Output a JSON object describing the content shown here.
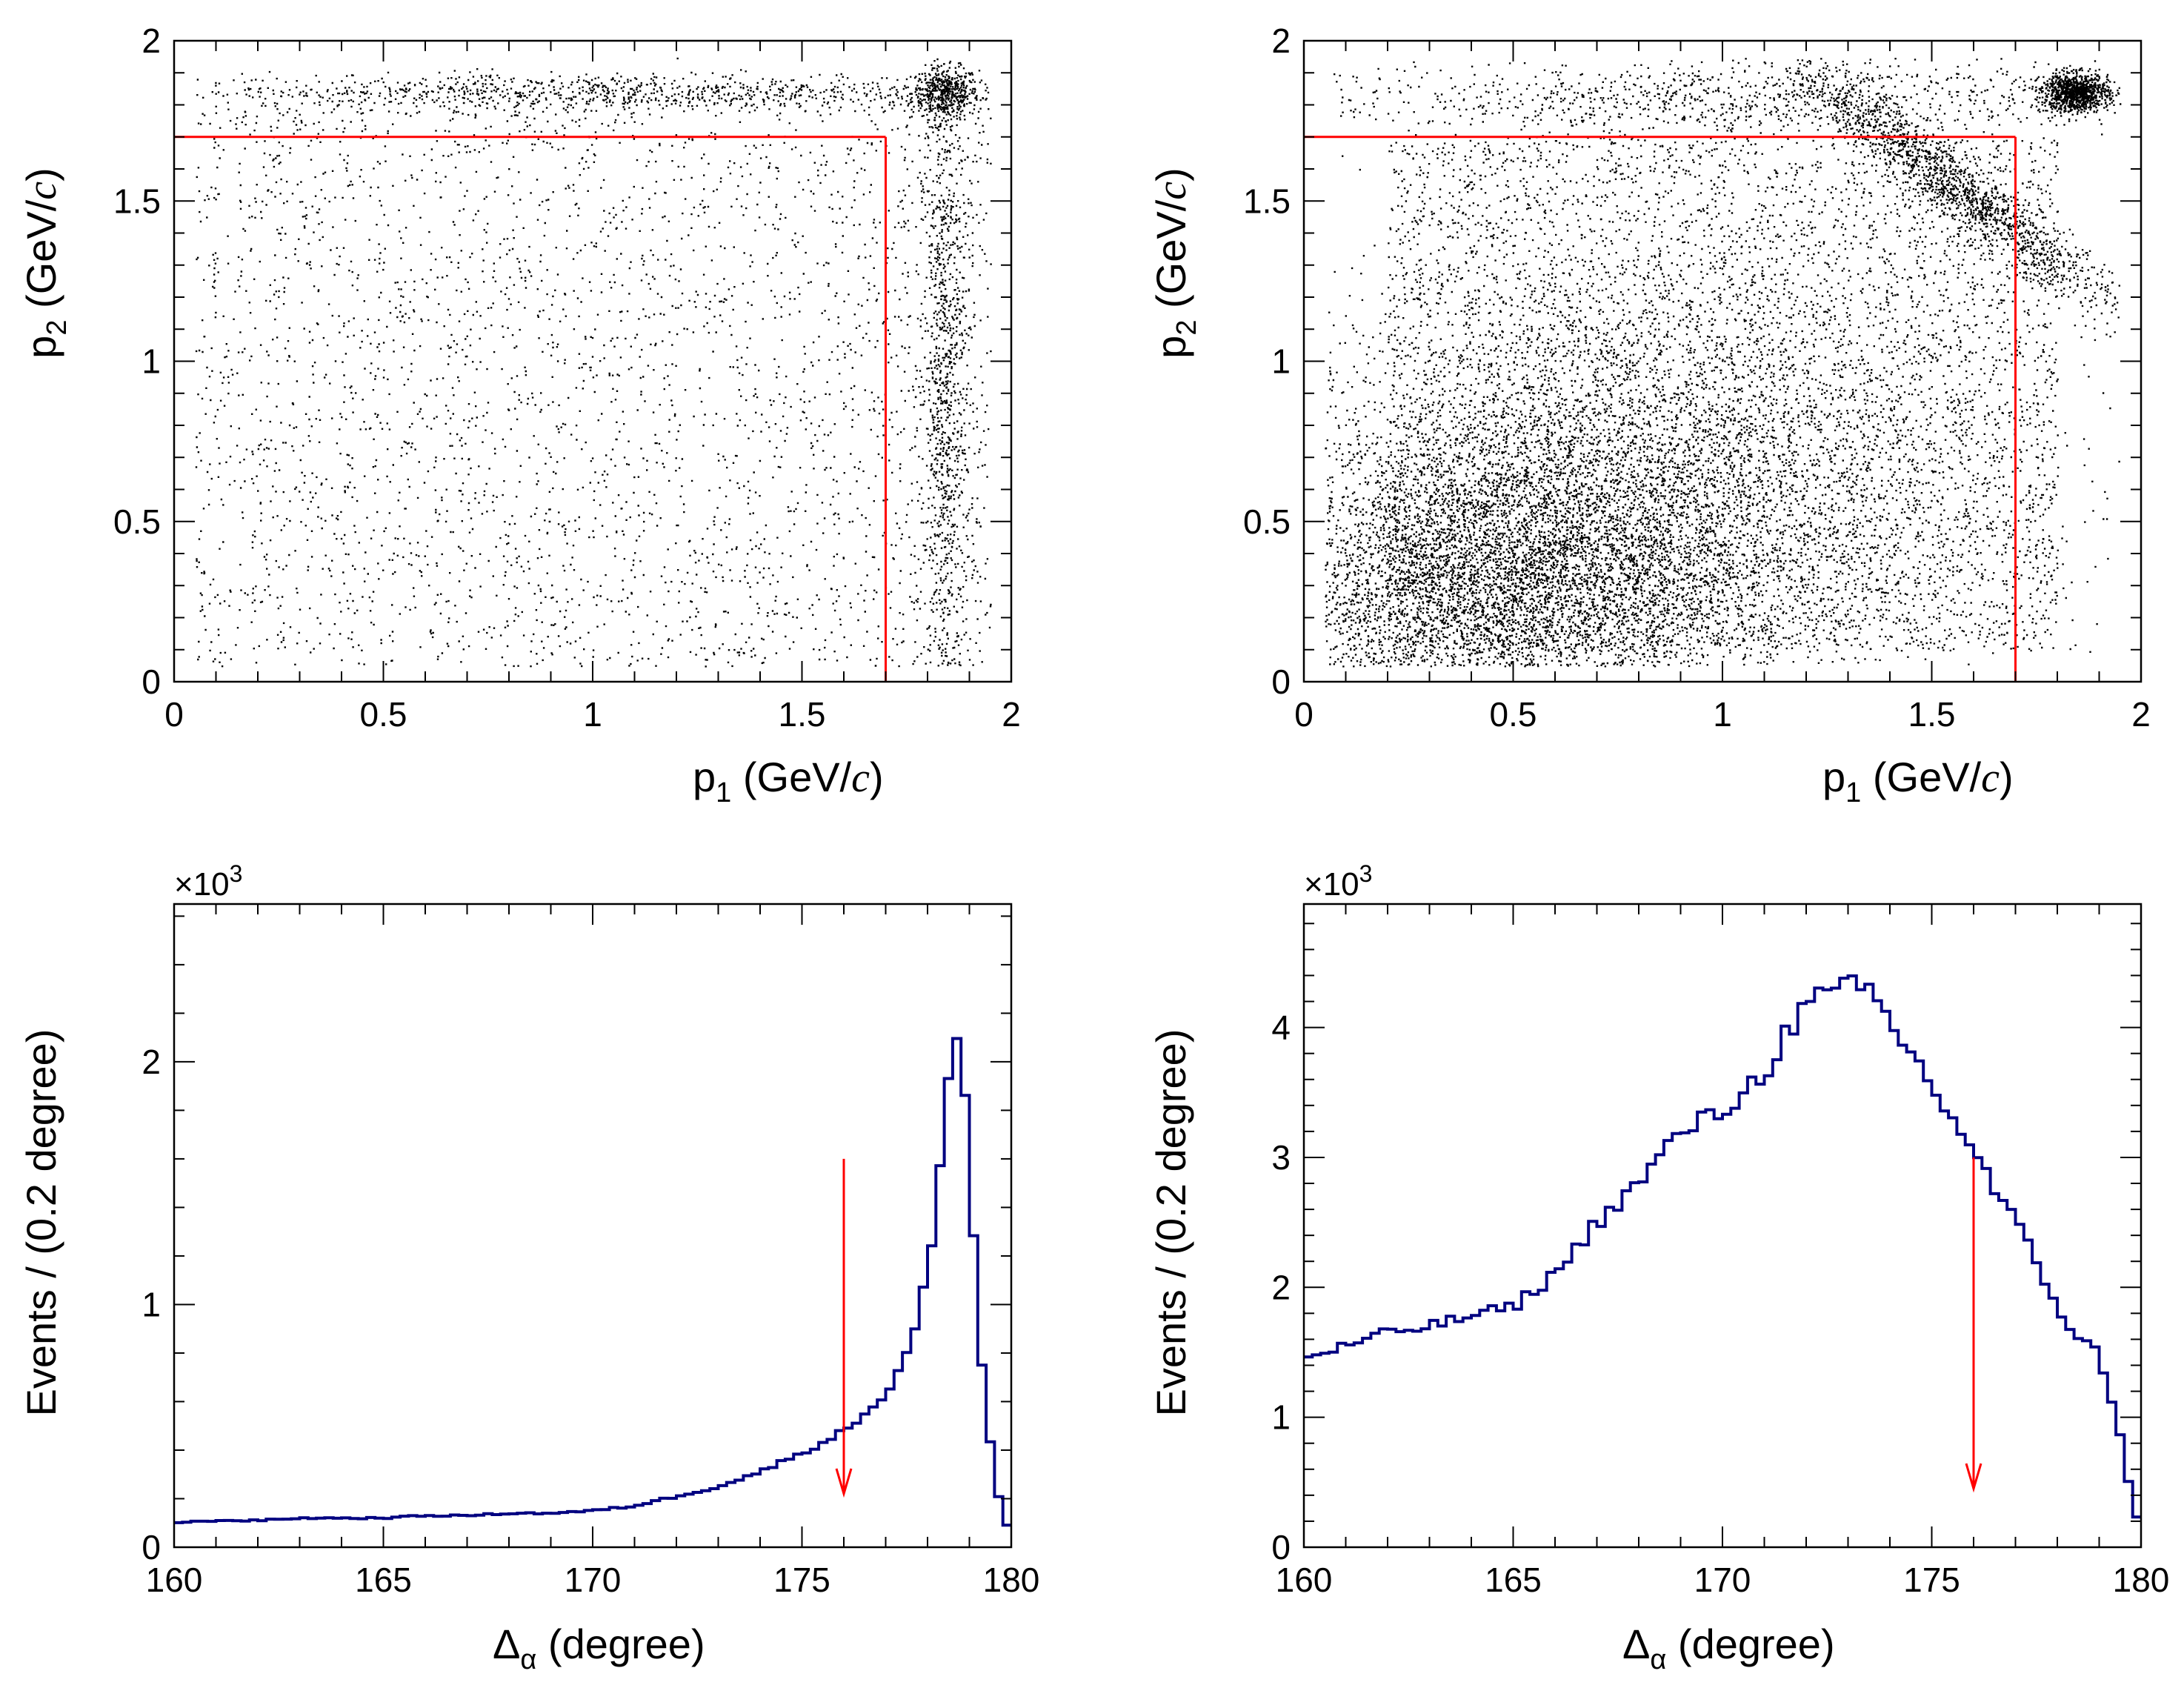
{
  "chart_data": [
    {
      "type": "scatter",
      "panel": "top-left",
      "xlabel": "p",
      "xlabel_sub": "1",
      "ylabel": "p",
      "ylabel_sub": "2",
      "unit_prefix": "(GeV/",
      "unit_var": "c",
      "unit_suffix": ")",
      "xlim": [
        0,
        2
      ],
      "ylim": [
        0,
        2
      ],
      "xticks": [
        "0",
        "0.5",
        "1",
        "1.5",
        "2"
      ],
      "yticks": [
        "0",
        "0.5",
        "1",
        "1.5",
        "2"
      ],
      "density": "sparse",
      "clusters": [
        {
          "x": 1.84,
          "y": 1.84,
          "sx": 0.04,
          "sy": 0.04,
          "weight": 0.08
        },
        {
          "x": 1.84,
          "y": 0.9,
          "sx": 0.03,
          "sy": 0.55,
          "weight": 0.18
        },
        {
          "x": 1.0,
          "y": 1.84,
          "sx": 0.55,
          "sy": 0.03,
          "weight": 0.18
        },
        {
          "x": 1.0,
          "y": 0.9,
          "sx": 1.0,
          "sy": 0.9,
          "weight": 0.56,
          "uniform": true
        }
      ],
      "cut_lines": [
        {
          "x": [
            0,
            1.7
          ],
          "y": [
            1.7,
            1.7
          ]
        },
        {
          "x": [
            1.7,
            1.7
          ],
          "y": [
            0,
            1.7
          ]
        }
      ],
      "cut_color": "#ff0000",
      "point_color": "#000000"
    },
    {
      "type": "scatter",
      "panel": "top-right",
      "xlabel": "p",
      "xlabel_sub": "1",
      "ylabel": "p",
      "ylabel_sub": "2",
      "unit_prefix": "(GeV/",
      "unit_var": "c",
      "unit_suffix": ")",
      "xlim": [
        0,
        2
      ],
      "ylim": [
        0,
        2
      ],
      "xticks": [
        "0",
        "0.5",
        "1",
        "1.5",
        "2"
      ],
      "yticks": [
        "0",
        "0.5",
        "1",
        "1.5",
        "2"
      ],
      "density": "dense",
      "clusters": [
        {
          "x": 0.45,
          "y": 0.3,
          "sx": 0.3,
          "sy": 0.22,
          "weight": 0.36
        },
        {
          "x": 0.8,
          "y": 0.6,
          "sx": 0.45,
          "sy": 0.35,
          "weight": 0.3
        },
        {
          "x": 1.0,
          "y": 0.9,
          "sx": 0.8,
          "sy": 0.8,
          "weight": 0.2,
          "uniform": true
        },
        {
          "x": 1.55,
          "y": 1.55,
          "sx": 0.2,
          "sy": 0.03,
          "weight": 0.06,
          "diagonal": true
        },
        {
          "x": 1.84,
          "y": 1.84,
          "sx": 0.04,
          "sy": 0.03,
          "weight": 0.04
        },
        {
          "x": 1.0,
          "y": 1.82,
          "sx": 0.5,
          "sy": 0.06,
          "weight": 0.04
        }
      ],
      "cut_lines": [
        {
          "x": [
            0,
            1.7
          ],
          "y": [
            1.7,
            1.7
          ]
        },
        {
          "x": [
            1.7,
            1.7
          ],
          "y": [
            0,
            1.7
          ]
        }
      ],
      "cut_color": "#ff0000",
      "point_color": "#000000"
    },
    {
      "type": "line",
      "style": "step-histogram",
      "panel": "bottom-left",
      "xlabel": "Δ",
      "xlabel_sub": "α",
      "xlabel_rest": "(degree)",
      "ylabel": "Events / (0.2 degree)",
      "y_multiplier": "×10",
      "y_multiplier_exp": "3",
      "xlim": [
        160,
        180
      ],
      "ylim": [
        0,
        2.65
      ],
      "xticks": [
        "160",
        "165",
        "170",
        "175",
        "180"
      ],
      "yticks": [
        "0",
        "1",
        "2"
      ],
      "bin_width": 0.2,
      "x": [
        160,
        161,
        162,
        163,
        164,
        165,
        166,
        167,
        168,
        169,
        170,
        170.5,
        171,
        171.5,
        172,
        172.5,
        173,
        173.5,
        174,
        174.5,
        175,
        175.5,
        176,
        176.5,
        177,
        177.4,
        177.8,
        178.1,
        178.4,
        178.6,
        178.8,
        179,
        179.2,
        179.4,
        179.6,
        179.8,
        180
      ],
      "values": [
        0.1,
        0.11,
        0.11,
        0.12,
        0.12,
        0.12,
        0.13,
        0.13,
        0.14,
        0.14,
        0.15,
        0.16,
        0.17,
        0.19,
        0.21,
        0.23,
        0.25,
        0.28,
        0.31,
        0.35,
        0.39,
        0.43,
        0.48,
        0.55,
        0.63,
        0.75,
        0.95,
        1.25,
        1.7,
        2.1,
        2.18,
        1.6,
        0.95,
        0.55,
        0.32,
        0.1,
        0.08
      ],
      "line_color": "#000080",
      "arrow": {
        "x": 176,
        "y_from": 1.6,
        "y_to": 0.22,
        "color": "#ff0000"
      }
    },
    {
      "type": "line",
      "style": "step-histogram",
      "panel": "bottom-right",
      "xlabel": "Δ",
      "xlabel_sub": "α",
      "xlabel_rest": "(degree)",
      "ylabel": "Events / (0.2 degree)",
      "y_multiplier": "×10",
      "y_multiplier_exp": "3",
      "xlim": [
        160,
        180
      ],
      "ylim": [
        0,
        4.95
      ],
      "xticks": [
        "160",
        "165",
        "170",
        "175",
        "180"
      ],
      "yticks": [
        "0",
        "1",
        "2",
        "3",
        "4"
      ],
      "bin_width": 0.2,
      "x": [
        160,
        161,
        162,
        163,
        164,
        165,
        166,
        167,
        168,
        169,
        170,
        171,
        171.5,
        172,
        172.5,
        173,
        173.5,
        174,
        174.5,
        175,
        175.5,
        176,
        176.5,
        177,
        177.5,
        178,
        178.5,
        179,
        179.5,
        179.8,
        180
      ],
      "values": [
        1.45,
        1.55,
        1.65,
        1.7,
        1.78,
        1.85,
        2.1,
        2.5,
        2.8,
        3.2,
        3.35,
        3.65,
        3.95,
        4.15,
        4.25,
        4.3,
        4.28,
        4.05,
        3.8,
        3.55,
        3.3,
        3.05,
        2.75,
        2.5,
        2.2,
        1.85,
        1.6,
        1.5,
        0.85,
        0.35,
        0.12
      ],
      "line_color": "#000080",
      "arrow": {
        "x": 176,
        "y_from": 3.0,
        "y_to": 0.45,
        "color": "#ff0000"
      }
    }
  ]
}
